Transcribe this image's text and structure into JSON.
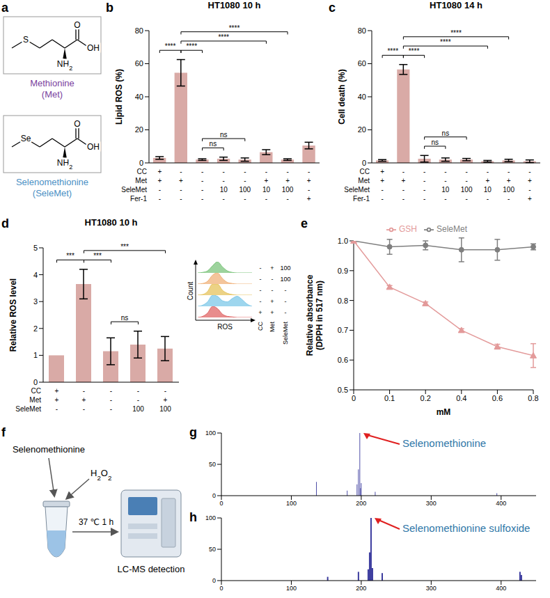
{
  "panel_a": {
    "panel": "a",
    "structures": [
      {
        "name": "Methionine",
        "abbr": "(Met)",
        "heteroatom": "S",
        "color": "#7b3f9e"
      },
      {
        "name": "Selenomethionine",
        "abbr": "(SeleMet)",
        "heteroatom": "Se",
        "color": "#4a8fc4"
      }
    ],
    "atoms": {
      "carbonyl": "O",
      "hydroxyl": "OH",
      "amine": "NH2"
    }
  },
  "chart_data": [
    {
      "panel": "b",
      "type": "bar",
      "title": "HT1080 10 h",
      "y_label": "Lipid ROS (%)",
      "ylim": [
        0,
        80
      ],
      "yticks": [
        0,
        20,
        40,
        60,
        80
      ],
      "values": [
        3,
        54.5,
        2,
        2.5,
        2,
        6.5,
        2,
        10.5
      ],
      "errors": [
        0.8,
        8,
        0.5,
        1,
        1,
        1.5,
        0.5,
        2
      ],
      "color": "#d9aaa6",
      "conditions": [
        {
          "label": "CC",
          "values": [
            "+",
            "-",
            "-",
            "-",
            "-",
            "-",
            "-",
            "-"
          ]
        },
        {
          "label": "Met",
          "values": [
            "+",
            "+",
            "-",
            "-",
            "-",
            "+",
            "+",
            "+"
          ]
        },
        {
          "label": "SeleMet",
          "values": [
            "-",
            "-",
            "-",
            "10",
            "100",
            "10",
            "100",
            "-"
          ]
        },
        {
          "label": "Fer-1",
          "values": [
            "-",
            "-",
            "-",
            "-",
            "-",
            "-",
            "-",
            "+"
          ]
        }
      ],
      "annotations": [
        {
          "from": 0,
          "to": 1,
          "label": "****"
        },
        {
          "from": 1,
          "to": 2,
          "label": "****"
        },
        {
          "from": 1,
          "to": 5,
          "label": "****"
        },
        {
          "from": 1,
          "to": 6,
          "label": "****"
        },
        {
          "from": 2,
          "to": 3,
          "label": "ns"
        },
        {
          "from": 2,
          "to": 4,
          "label": "ns"
        }
      ]
    },
    {
      "panel": "c",
      "type": "bar",
      "title": "HT1080 14 h",
      "y_label": "Cell death (%)",
      "ylim": [
        0,
        80
      ],
      "yticks": [
        0,
        20,
        40,
        60,
        80
      ],
      "values": [
        1.5,
        56.5,
        2.5,
        2,
        2,
        1,
        1.5,
        1
      ],
      "errors": [
        0.5,
        3,
        2,
        1,
        0.7,
        0.5,
        0.7,
        0.8
      ],
      "color": "#d9aaa6",
      "conditions": [
        {
          "label": "CC",
          "values": [
            "+",
            "-",
            "-",
            "-",
            "-",
            "-",
            "-",
            "-"
          ]
        },
        {
          "label": "Met",
          "values": [
            "+",
            "+",
            "-",
            "-",
            "-",
            "+",
            "+",
            "+"
          ]
        },
        {
          "label": "SeleMet",
          "values": [
            "-",
            "-",
            "-",
            "10",
            "100",
            "10",
            "100",
            "-"
          ]
        },
        {
          "label": "Fer-1",
          "values": [
            "-",
            "-",
            "-",
            "-",
            "-",
            "-",
            "-",
            "+"
          ]
        }
      ],
      "annotations": [
        {
          "from": 0,
          "to": 1,
          "label": "****"
        },
        {
          "from": 1,
          "to": 2,
          "label": "****"
        },
        {
          "from": 1,
          "to": 5,
          "label": "****"
        },
        {
          "from": 1,
          "to": 6,
          "label": "****"
        },
        {
          "from": 2,
          "to": 3,
          "label": "ns"
        },
        {
          "from": 2,
          "to": 4,
          "label": "ns"
        }
      ]
    },
    {
      "panel": "d",
      "type": "bar",
      "title": "HT1080 10 h",
      "y_label": "Relative ROS level",
      "ylim": [
        0,
        5
      ],
      "yticks": [
        0,
        1,
        2,
        3,
        4,
        5
      ],
      "values": [
        1,
        3.65,
        1.15,
        1.4,
        1.25
      ],
      "errors": [
        0,
        0.55,
        0.5,
        0.5,
        0.45
      ],
      "color": "#d9aaa6",
      "conditions": [
        {
          "label": "CC",
          "values": [
            "+",
            "-",
            "-",
            "-",
            "-"
          ]
        },
        {
          "label": "Met",
          "values": [
            "+",
            "+",
            "-",
            "-",
            "+"
          ]
        },
        {
          "label": "SeleMet",
          "values": [
            "-",
            "-",
            "-",
            "100",
            "100"
          ]
        }
      ],
      "annotations": [
        {
          "from": 0,
          "to": 1,
          "label": "***"
        },
        {
          "from": 1,
          "to": 2,
          "label": "***"
        },
        {
          "from": 2,
          "to": 3,
          "label": "ns"
        },
        {
          "from": 1,
          "to": 4,
          "label": "***"
        }
      ],
      "inset": {
        "x_label": "ROS",
        "y_label": "Count",
        "condition_labels": [
          "CC",
          "Met",
          "SeleMet"
        ],
        "histograms": [
          {
            "color": "#7cc47c",
            "conditions": [
              "-",
              "+",
              "100"
            ],
            "counts": [
              0,
              1,
              4,
              14,
              22,
              12,
              4,
              1,
              0,
              0,
              0,
              0
            ]
          },
          {
            "color": "#f0b27a",
            "conditions": [
              "-",
              "-",
              "100"
            ],
            "counts": [
              0,
              1,
              5,
              16,
              20,
              10,
              3,
              1,
              0,
              0,
              0,
              0
            ]
          },
          {
            "color": "#e6c35c",
            "conditions": [
              "-",
              "-",
              "-"
            ],
            "counts": [
              0,
              1,
              6,
              18,
              18,
              8,
              3,
              1,
              0,
              0,
              0,
              0
            ]
          },
          {
            "color": "#7ec8e8",
            "conditions": [
              "-",
              "+",
              "-"
            ],
            "counts": [
              0,
              1,
              4,
              10,
              9,
              5,
              4,
              7,
              9,
              6,
              2,
              0
            ]
          },
          {
            "color": "#e06666",
            "conditions": [
              "+",
              "+",
              "-"
            ],
            "counts": [
              0,
              2,
              8,
              20,
              16,
              6,
              2,
              1,
              0,
              0,
              0,
              0
            ]
          }
        ]
      }
    },
    {
      "panel": "e",
      "type": "line",
      "categories": [
        "0",
        "0.1",
        "0.2",
        "0.4",
        "0.6",
        "0.8"
      ],
      "x_label": "mM",
      "y_label": "Relative absorbance (DPPH in 517 nm)",
      "ylim": [
        0.5,
        1
      ],
      "yticks": [
        0.5,
        0.6,
        0.7,
        0.8,
        0.9,
        {
          "value": 1,
          "label": "1.0"
        }
      ],
      "legend": "top",
      "series": [
        {
          "name": "SeleMet",
          "color": "#7f7f7f",
          "marker": "circle",
          "values": [
            1,
            0.98,
            0.985,
            0.97,
            0.97,
            0.98
          ],
          "errors": [
            0,
            0.025,
            0.015,
            0.04,
            0.035,
            0.01
          ]
        },
        {
          "name": "GSH",
          "color": "#e39a9a",
          "marker": "triangle",
          "values": [
            1,
            0.845,
            0.79,
            0.7,
            0.645,
            0.615
          ],
          "errors": [
            0,
            0.005,
            0.005,
            0.005,
            0.008,
            0.04
          ]
        }
      ]
    },
    {
      "panel": "g",
      "type": "bar",
      "annotation": "Selenomethionine",
      "x": [
        136,
        180,
        194,
        196,
        198,
        199,
        200,
        220,
        394
      ],
      "values": [
        22,
        8,
        18,
        42,
        100,
        12,
        20,
        6,
        4
      ],
      "xlim": [
        0,
        450
      ],
      "xticks": [
        0,
        100,
        200,
        300,
        400
      ],
      "ylim": [
        0,
        100
      ],
      "yticks": [
        0,
        50,
        100
      ],
      "color": "#3b3b9e"
    },
    {
      "panel": "h",
      "type": "bar",
      "annotation": "Selenomethionine sulfoxide",
      "x": [
        152,
        196,
        210,
        212,
        214,
        216,
        230,
        427,
        429
      ],
      "values": [
        6,
        14,
        18,
        45,
        100,
        20,
        12,
        14,
        9
      ],
      "xlim": [
        0,
        450
      ],
      "xticks": [
        0,
        100,
        200,
        300,
        400
      ],
      "ylim": [
        0,
        100
      ],
      "yticks": [
        0,
        50,
        100
      ],
      "color": "#3b3b9e"
    }
  ],
  "panel_f": {
    "panel": "f",
    "reagent": "Selenomethionine",
    "oxidant": "H2O2",
    "condition": "37 ℃ 1 h",
    "instrument": "LC-MS detection"
  }
}
